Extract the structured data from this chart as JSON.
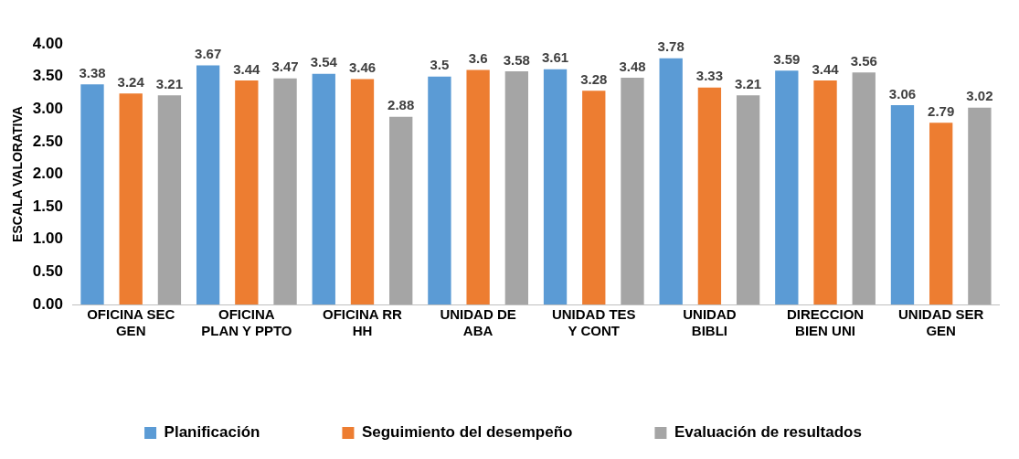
{
  "chart_data": {
    "type": "bar",
    "ylabel": "ESCALA VALORATIVA",
    "categories": [
      "OFICINA SEC GEN",
      "OFICINA PLAN Y PPTO",
      "OFICINA RR HH",
      "UNIDAD DE ABA",
      "UNIDAD TES Y CONT",
      "UNIDAD BIBLI",
      "DIRECCION BIEN UNI",
      "UNIDAD SER GEN"
    ],
    "series": [
      {
        "name": "Planificación",
        "color": "#5b9bd5",
        "values": [
          3.38,
          3.67,
          3.54,
          3.5,
          3.61,
          3.78,
          3.59,
          3.06
        ]
      },
      {
        "name": "Seguimiento del desempeño",
        "color": "#ed7d31",
        "values": [
          3.24,
          3.44,
          3.46,
          3.6,
          3.28,
          3.33,
          3.44,
          2.79
        ]
      },
      {
        "name": "Evaluación de resultados",
        "color": "#a5a5a5",
        "values": [
          3.21,
          3.47,
          2.88,
          3.58,
          3.48,
          3.21,
          3.56,
          3.02
        ]
      }
    ],
    "ylim": [
      0,
      4
    ],
    "yticks": [
      {
        "value": 0,
        "label": "0.00"
      },
      {
        "value": 0.5,
        "label": "0.50"
      },
      {
        "value": 1,
        "label": "1.00"
      },
      {
        "value": 1.5,
        "label": "1.50"
      },
      {
        "value": 2,
        "label": "2.00"
      },
      {
        "value": 2.5,
        "label": "2.50"
      },
      {
        "value": 3,
        "label": "3.00"
      },
      {
        "value": 3.5,
        "label": "3.50"
      },
      {
        "value": 4,
        "label": "4.00"
      }
    ],
    "grid": false,
    "legend": "bottom",
    "data_labels": true
  }
}
